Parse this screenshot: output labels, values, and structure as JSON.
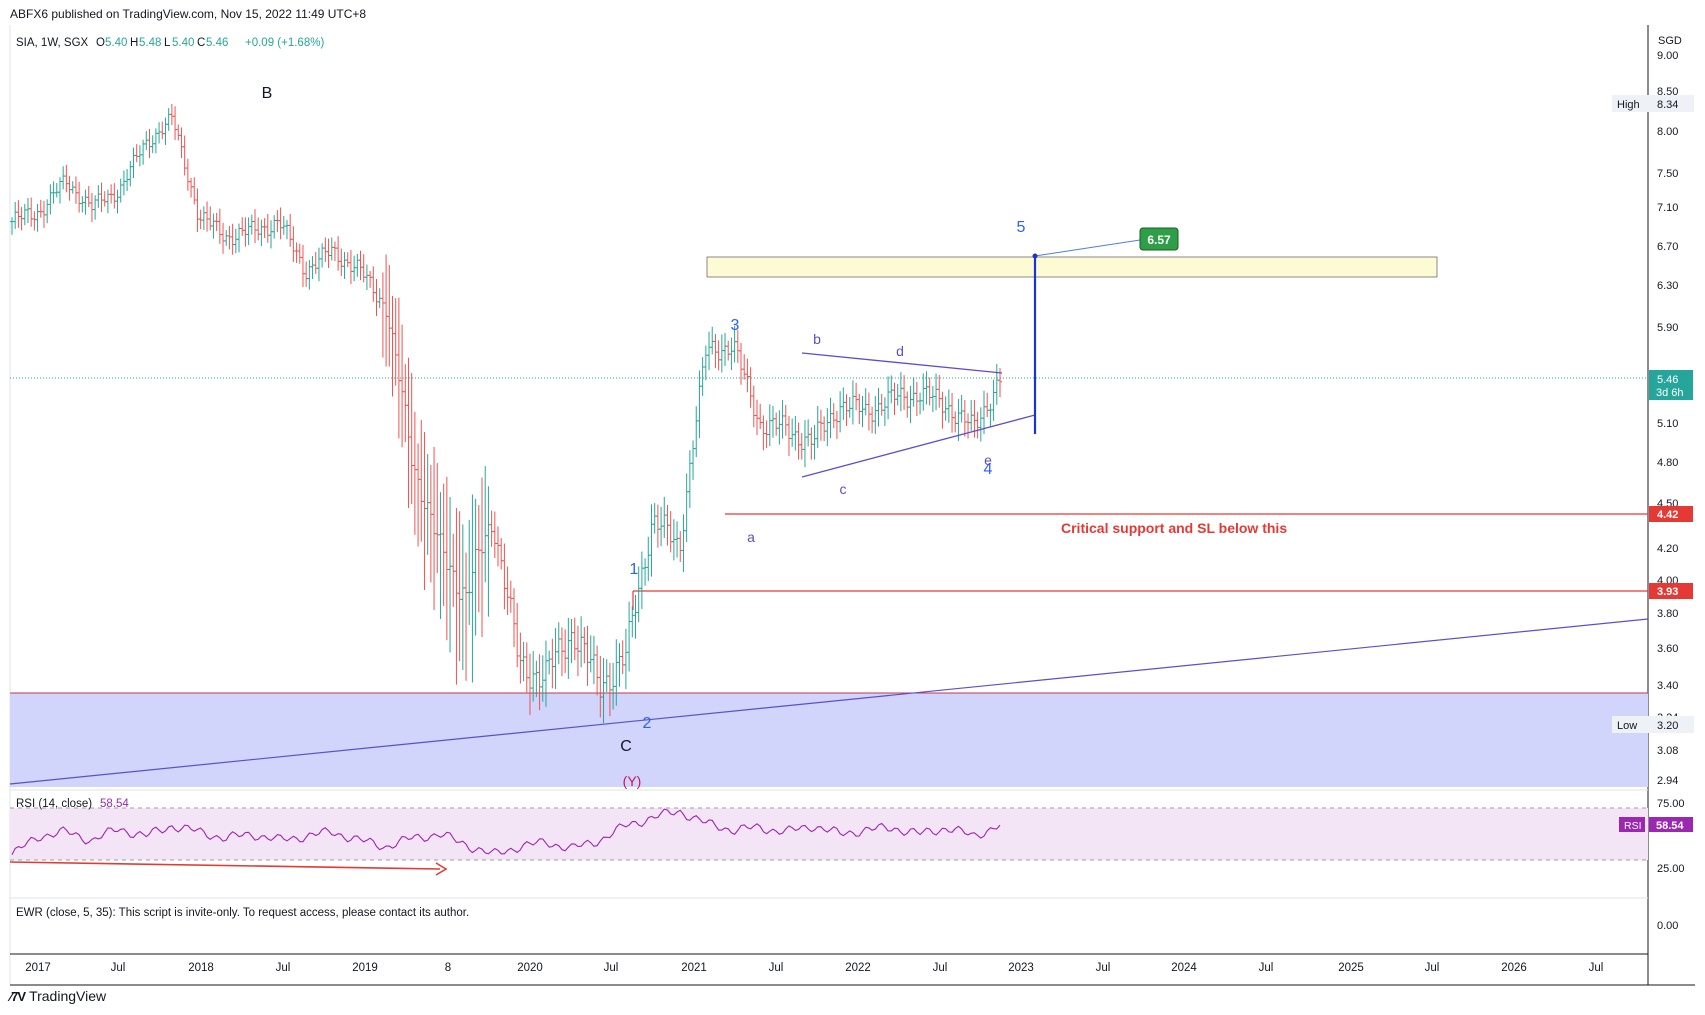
{
  "header": {
    "publish_line": "ABFX6 published on TradingView.com, Nov 15, 2022 11:49 UTC+8",
    "symbol": "SIA, 1W, SGX",
    "open_label": "O",
    "open": "5.40",
    "high_label": "H",
    "high": "5.48",
    "low_label": "L",
    "low": "5.40",
    "close_label": "C",
    "close": "5.46",
    "change": "+0.09 (+1.68%)",
    "currency": "SGD"
  },
  "colors": {
    "up": "#26a69a",
    "down": "#ef5350",
    "wave_blue": "#2962ff",
    "purple": "#5b4fcf",
    "red": "#e53935",
    "rsi": "#9c27b0",
    "last_price_green": "#26a69a"
  },
  "price_axis_ticks": [
    "9.00",
    "8.50",
    "8.00",
    "7.50",
    "7.10",
    "6.70",
    "6.30",
    "5.90",
    "5.10",
    "4.80",
    "4.50",
    "4.20",
    "4.00",
    "3.80",
    "3.60",
    "3.40",
    "3.24",
    "3.08",
    "2.94"
  ],
  "price_labels": {
    "high_text": "High",
    "high_value": "8.34",
    "low_text": "Low",
    "low_value": "3.20",
    "last_value": "5.46",
    "last_countdown": "3d 6h",
    "support_value": "4.42",
    "wave1_value": "3.93",
    "target_value": "6.57"
  },
  "wave_labels": {
    "B": "B",
    "C": "C",
    "Y": "(Y)",
    "w1": "1",
    "w2": "2",
    "w3": "3",
    "w4": "4",
    "w5": "5",
    "a": "a",
    "b": "b",
    "c": "c",
    "d": "d",
    "e": "e"
  },
  "annotation": "Critical support and SL below this",
  "rsi": {
    "label": "RSI (14, close)",
    "value": "58.54",
    "tag": "RSI",
    "ticks": [
      "75.00",
      "25.00"
    ]
  },
  "ewr": {
    "label": "EWR (close, 5, 35): This script is invite-only. To request access, please contact its author.",
    "tick": "0.00"
  },
  "time_axis": [
    "2017",
    "Jul",
    "2018",
    "Jul",
    "2019",
    "8",
    "2020",
    "Jul",
    "2021",
    "Jul",
    "2022",
    "Jul",
    "2023",
    "Jul",
    "2024",
    "Jul",
    "2025",
    "Jul",
    "2026",
    "Jul"
  ],
  "brand": "TradingView",
  "chart_data": {
    "type": "candlestick",
    "title": "SIA, 1W, SGX",
    "ylabel": "SGD",
    "ylim": [
      2.9,
      9.1
    ],
    "x": [
      "2016-12",
      "2017-03",
      "2017-06",
      "2017-09",
      "2017-12",
      "2018-03",
      "2018-05",
      "2018-08",
      "2018-11",
      "2019-02",
      "2019-05",
      "2019-08",
      "2019-11",
      "2020-01",
      "2020-02",
      "2020-03",
      "2020-04",
      "2020-05",
      "2020-06",
      "2020-07",
      "2020-08",
      "2020-09",
      "2020-10",
      "2020-11",
      "2020-12",
      "2021-02",
      "2021-03",
      "2021-04",
      "2021-06",
      "2021-08",
      "2021-10",
      "2021-12",
      "2022-02",
      "2022-04",
      "2022-06",
      "2022-08",
      "2022-10",
      "2022-11"
    ],
    "close": [
      6.95,
      7.05,
      7.4,
      7.1,
      7.3,
      7.85,
      8.15,
      7.0,
      6.8,
      6.85,
      6.95,
      6.45,
      6.65,
      6.45,
      6.1,
      4.8,
      4.2,
      3.9,
      4.4,
      3.5,
      3.45,
      3.7,
      3.4,
      3.55,
      4.4,
      4.2,
      5.7,
      5.75,
      5.1,
      5.05,
      4.95,
      5.25,
      5.2,
      5.3,
      5.35,
      5.25,
      5.05,
      5.46
    ],
    "series": [
      {
        "name": "RSI (14, close)",
        "last": 58.54,
        "range": [
          0,
          100
        ]
      }
    ],
    "levels": {
      "high": 8.34,
      "low": 3.2,
      "last": 5.46,
      "critical_support": 4.42,
      "wave_1_top": 3.93,
      "wave_5_target": 6.57
    },
    "target_zone": [
      6.38,
      6.6
    ]
  }
}
